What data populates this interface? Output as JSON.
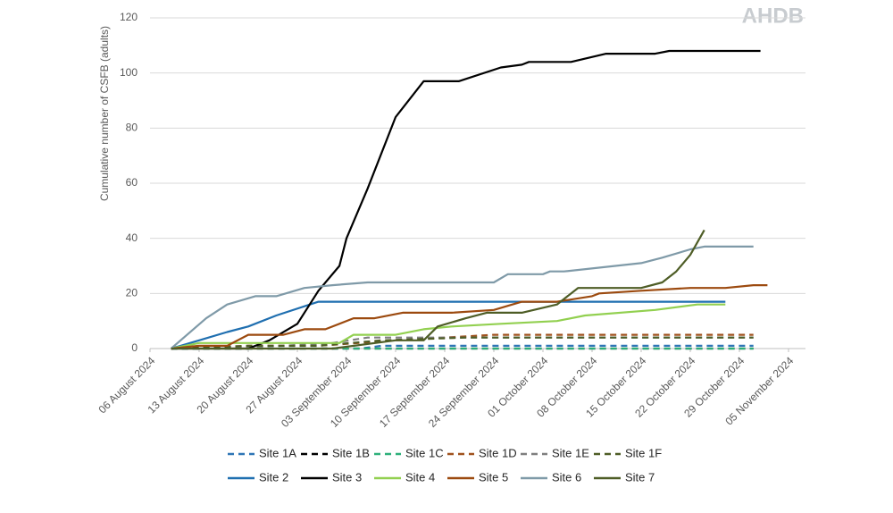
{
  "chart_data": {
    "type": "line",
    "logo": "AHDB",
    "y_label": "Cumulative number of CSFB (adults)",
    "xlim": [
      "2024-08-06",
      "2024-11-05"
    ],
    "xticks": [
      {
        "value": "2024-08-06",
        "label": "06 August 2024"
      },
      {
        "value": "2024-08-13",
        "label": "13 August 2024"
      },
      {
        "value": "2024-08-20",
        "label": "20 August 2024"
      },
      {
        "value": "2024-08-27",
        "label": "27 August 2024"
      },
      {
        "value": "2024-09-03",
        "label": "03 September 2024"
      },
      {
        "value": "2024-09-10",
        "label": "10 September 2024"
      },
      {
        "value": "2024-09-17",
        "label": "17 September 2024"
      },
      {
        "value": "2024-09-24",
        "label": "24 September 2024"
      },
      {
        "value": "2024-10-01",
        "label": "01 October 2024"
      },
      {
        "value": "2024-10-08",
        "label": "08 October 2024"
      },
      {
        "value": "2024-10-15",
        "label": "15 October 2024"
      },
      {
        "value": "2024-10-22",
        "label": "22 October 2024"
      },
      {
        "value": "2024-10-29",
        "label": "29 October 2024"
      },
      {
        "value": "2024-11-05",
        "label": "05 November 2024"
      }
    ],
    "ylim": [
      0,
      120
    ],
    "yticks": [
      0,
      20,
      40,
      60,
      80,
      100,
      120
    ],
    "grid": true,
    "legend": "bottom",
    "series": [
      {
        "name": "Site 1A",
        "color": "#2e75b6",
        "dashed": true,
        "x": [
          "2024-08-09",
          "2024-09-05",
          "2024-09-08",
          "2024-10-31"
        ],
        "values": [
          0,
          0,
          1,
          1
        ]
      },
      {
        "name": "Site 1B",
        "color": "#000000",
        "dashed": true,
        "x": [
          "2024-08-09",
          "2024-10-31"
        ],
        "values": [
          0,
          0
        ]
      },
      {
        "name": "Site 1C",
        "color": "#2db07a",
        "dashed": true,
        "x": [
          "2024-08-09",
          "2024-10-31"
        ],
        "values": [
          0,
          0
        ]
      },
      {
        "name": "Site 1D",
        "color": "#a0521e",
        "dashed": true,
        "x": [
          "2024-08-09",
          "2024-08-20",
          "2024-08-30",
          "2024-09-10",
          "2024-09-24",
          "2024-10-31"
        ],
        "values": [
          0,
          1,
          1,
          3,
          5,
          5
        ]
      },
      {
        "name": "Site 1E",
        "color": "#7f7f7f",
        "dashed": true,
        "x": [
          "2024-08-09",
          "2024-08-25",
          "2024-09-01",
          "2024-09-06",
          "2024-10-31"
        ],
        "values": [
          0,
          1,
          2,
          4,
          4
        ]
      },
      {
        "name": "Site 1F",
        "color": "#4e5d26",
        "dashed": true,
        "x": [
          "2024-08-09",
          "2024-08-20",
          "2024-08-30",
          "2024-09-08",
          "2024-09-20",
          "2024-10-31"
        ],
        "values": [
          0,
          1,
          1,
          3,
          4,
          4
        ]
      },
      {
        "name": "Site 2",
        "color": "#1f6fb0",
        "x": [
          "2024-08-09",
          "2024-08-13",
          "2024-08-17",
          "2024-08-20",
          "2024-08-24",
          "2024-08-30",
          "2024-10-27"
        ],
        "values": [
          0,
          3,
          6,
          8,
          12,
          17,
          17
        ]
      },
      {
        "name": "Site 3",
        "color": "#000000",
        "x": [
          "2024-08-09",
          "2024-08-20",
          "2024-08-23",
          "2024-08-27",
          "2024-08-30",
          "2024-09-02",
          "2024-09-03",
          "2024-09-06",
          "2024-09-10",
          "2024-09-14",
          "2024-09-19",
          "2024-09-25",
          "2024-09-28",
          "2024-09-29",
          "2024-10-05",
          "2024-10-10",
          "2024-10-17",
          "2024-10-19",
          "2024-11-01"
        ],
        "values": [
          0,
          0,
          3,
          9,
          21,
          30,
          40,
          58,
          84,
          97,
          97,
          102,
          103,
          104,
          104,
          107,
          107,
          108,
          108
        ]
      },
      {
        "name": "Site 4",
        "color": "#92d050",
        "x": [
          "2024-08-09",
          "2024-08-13",
          "2024-09-02",
          "2024-09-04",
          "2024-09-10",
          "2024-09-14",
          "2024-09-18",
          "2024-09-25",
          "2024-10-03",
          "2024-10-07",
          "2024-10-17",
          "2024-10-23",
          "2024-10-27"
        ],
        "values": [
          0,
          2,
          2,
          5,
          5,
          7,
          8,
          9,
          10,
          12,
          14,
          16,
          16
        ]
      },
      {
        "name": "Site 5",
        "color": "#9c4a0f",
        "x": [
          "2024-08-09",
          "2024-08-13",
          "2024-08-17",
          "2024-08-20",
          "2024-08-25",
          "2024-08-28",
          "2024-08-31",
          "2024-09-04",
          "2024-09-07",
          "2024-09-11",
          "2024-09-18",
          "2024-09-24",
          "2024-09-28",
          "2024-10-03",
          "2024-10-08",
          "2024-10-09",
          "2024-10-15",
          "2024-10-22",
          "2024-10-27",
          "2024-10-31",
          "2024-11-02"
        ],
        "values": [
          0,
          1,
          1,
          5,
          5,
          7,
          7,
          11,
          11,
          13,
          13,
          14,
          17,
          17,
          19,
          20,
          21,
          22,
          22,
          23,
          23
        ]
      },
      {
        "name": "Site 6",
        "color": "#7f9aa8",
        "x": [
          "2024-08-09",
          "2024-08-14",
          "2024-08-17",
          "2024-08-21",
          "2024-08-24",
          "2024-08-28",
          "2024-09-01",
          "2024-09-06",
          "2024-09-24",
          "2024-09-26",
          "2024-10-01",
          "2024-10-02",
          "2024-10-04",
          "2024-10-15",
          "2024-10-18",
          "2024-10-22",
          "2024-10-24",
          "2024-10-31"
        ],
        "values": [
          0,
          11,
          16,
          19,
          19,
          22,
          23,
          24,
          24,
          27,
          27,
          28,
          28,
          31,
          33,
          36,
          37,
          37
        ]
      },
      {
        "name": "Site 7",
        "color": "#4e5d26",
        "x": [
          "2024-08-09",
          "2024-09-01",
          "2024-09-10",
          "2024-09-14",
          "2024-09-16",
          "2024-09-20",
          "2024-09-23",
          "2024-09-28",
          "2024-10-03",
          "2024-10-06",
          "2024-10-15",
          "2024-10-18",
          "2024-10-20",
          "2024-10-22",
          "2024-10-24"
        ],
        "values": [
          0,
          0,
          3,
          3,
          8,
          11,
          13,
          13,
          16,
          22,
          22,
          24,
          28,
          34,
          43
        ]
      }
    ]
  }
}
